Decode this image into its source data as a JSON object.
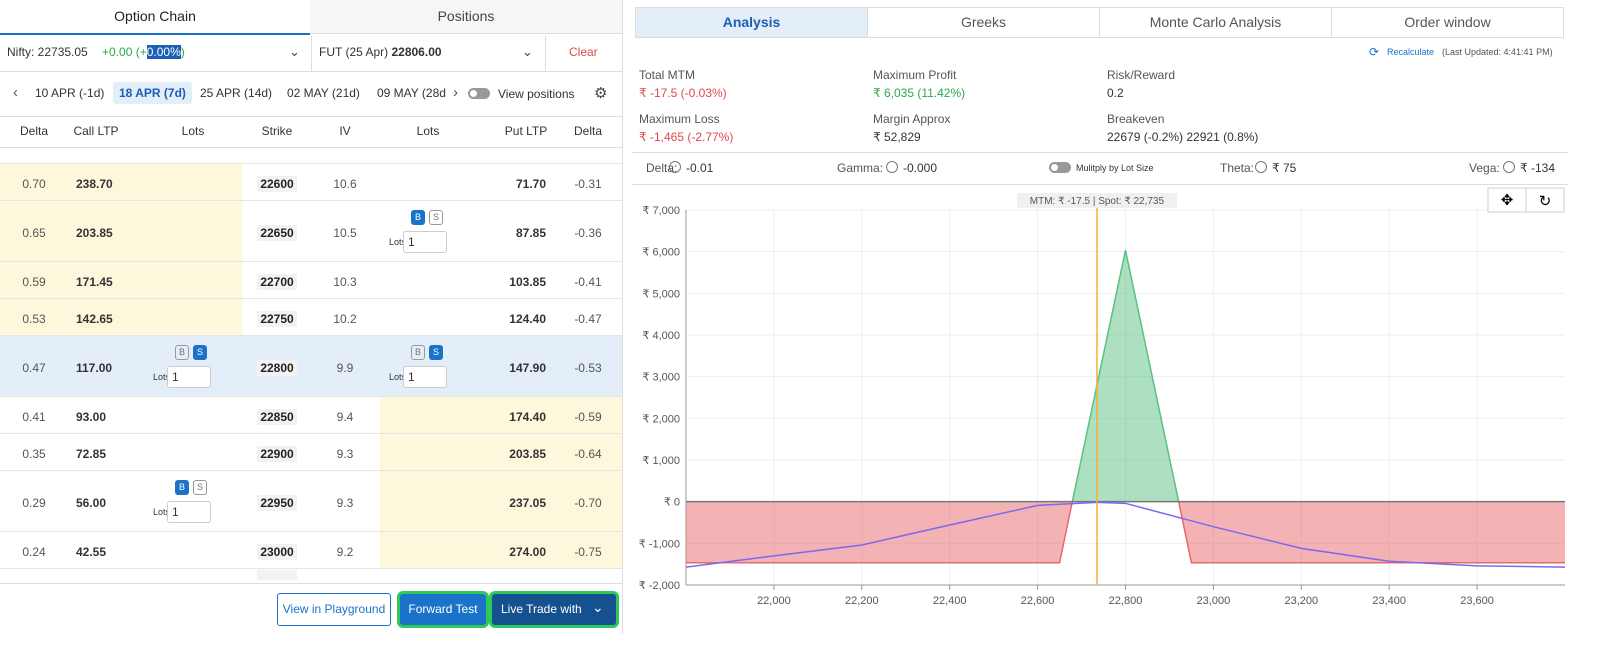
{
  "left": {
    "tabs": [
      "Option Chain",
      "Positions"
    ],
    "active_tab": 0,
    "nifty": "Nifty: 22735.05",
    "nifty_change": "+0.00",
    "change_open": "(+",
    "change_pct": "0.00%",
    "change_close": ")",
    "fut_label": "FUT (25 Apr)",
    "fut_price": "22806.00",
    "clear": "Clear",
    "expiries": [
      "10 APR (-1d)",
      "18 APR (7d)",
      "25 APR (14d)",
      "02 MAY (21d)",
      "09 MAY (28d"
    ],
    "active_expiry": 1,
    "view_positions": "View positions",
    "table": {
      "headers": [
        "Delta",
        "Call LTP",
        "Lots",
        "Strike",
        "IV",
        "Lots",
        "Put LTP",
        "Delta"
      ],
      "rows": [
        {
          "cells": [
            "0.70",
            "238.70",
            "22600",
            "10.6",
            "71.70",
            "-0.31"
          ],
          "call_itm": true,
          "put_itm": false,
          "highlight": false,
          "call_order": null,
          "put_order": null
        },
        {
          "cells": [
            "0.65",
            "203.85",
            "22650",
            "10.5",
            "87.85",
            "-0.36"
          ],
          "call_itm": true,
          "put_itm": false,
          "highlight": false,
          "call_order": null,
          "put_order": {
            "buy": "B",
            "sell": "S",
            "lots_label": "Lots",
            "lots": "1",
            "active": "buy"
          }
        },
        {
          "cells": [
            "0.59",
            "171.45",
            "22700",
            "10.3",
            "103.85",
            "-0.41"
          ],
          "call_itm": true,
          "put_itm": false,
          "highlight": false,
          "call_order": null,
          "put_order": null
        },
        {
          "cells": [
            "0.53",
            "142.65",
            "22750",
            "10.2",
            "124.40",
            "-0.47"
          ],
          "call_itm": true,
          "put_itm": false,
          "highlight": false,
          "call_order": null,
          "put_order": null
        },
        {
          "cells": [
            "0.47",
            "117.00",
            "22800",
            "9.9",
            "147.90",
            "-0.53"
          ],
          "call_itm": false,
          "put_itm": false,
          "highlight": true,
          "call_order": {
            "buy": "B",
            "sell": "S",
            "lots_label": "Lots",
            "lots": "1",
            "active": "sell"
          },
          "put_order": {
            "buy": "B",
            "sell": "S",
            "lots_label": "Lots",
            "lots": "1",
            "active": "sell"
          }
        },
        {
          "cells": [
            "0.41",
            "93.00",
            "22850",
            "9.4",
            "174.40",
            "-0.59"
          ],
          "call_itm": false,
          "put_itm": true,
          "highlight": false,
          "call_order": null,
          "put_order": null
        },
        {
          "cells": [
            "0.35",
            "72.85",
            "22900",
            "9.3",
            "203.85",
            "-0.64"
          ],
          "call_itm": false,
          "put_itm": true,
          "highlight": false,
          "call_order": null,
          "put_order": null
        },
        {
          "cells": [
            "0.29",
            "56.00",
            "22950",
            "9.3",
            "237.05",
            "-0.70"
          ],
          "call_itm": false,
          "put_itm": true,
          "highlight": false,
          "call_order": {
            "buy": "B",
            "sell": "S",
            "lots_label": "Lots",
            "lots": "1",
            "active": "buy"
          },
          "put_order": null
        },
        {
          "cells": [
            "0.24",
            "42.55",
            "23000",
            "9.2",
            "274.00",
            "-0.75"
          ],
          "call_itm": false,
          "put_itm": true,
          "highlight": false,
          "call_order": null,
          "put_order": null
        }
      ]
    },
    "buttons": [
      "View in Playground",
      "Forward Test",
      "Live Trade with"
    ]
  },
  "right": {
    "tabs": [
      "Analysis",
      "Greeks",
      "Monte Carlo Analysis",
      "Order window"
    ],
    "active_tab": 0,
    "recalculate": "Recalculate",
    "last_updated": "(Last Updated: 4:41:41 PM)",
    "stats": [
      {
        "label": "Total MTM",
        "value": "₹ -17.5 (-0.03%)",
        "color": "#e0474c"
      },
      {
        "label": "Maximum Profit",
        "value": "₹ 6,035 (11.42%)",
        "color": "#2aa84a"
      },
      {
        "label": "Risk/Reward",
        "value": "0.2",
        "color": "#333"
      },
      {
        "label": "Maximum Loss",
        "value": "₹ -1,465 (-2.77%)",
        "color": "#e0474c"
      },
      {
        "label": "Margin Approx",
        "value": "₹ 52,829",
        "color": "#333"
      },
      {
        "label": "Breakeven",
        "value": "22679 (-0.2%)  22921 (0.8%)",
        "color": "#333"
      }
    ],
    "greeks": [
      {
        "label": "Delta:",
        "value": "-0.01"
      },
      {
        "label": "Gamma:",
        "value": "-0.000"
      },
      {
        "label": "Theta:",
        "value": "₹ 75"
      },
      {
        "label": "Vega:",
        "value": "₹ -134"
      }
    ],
    "lot_toggle": "Mulitply by Lot Size"
  },
  "chart_data": {
    "type": "payoff",
    "annotation": "MTM: ₹ -17.5  |  Spot: ₹ 22,735",
    "spot": 22735,
    "spot_color": "#f5b041",
    "xlim": [
      21800,
      23800
    ],
    "xticks": [
      {
        "value": 22000,
        "label": "22,000"
      },
      {
        "value": 22200,
        "label": "22,200"
      },
      {
        "value": 22400,
        "label": "22,400"
      },
      {
        "value": 22600,
        "label": "22,600"
      },
      {
        "value": 22800,
        "label": "22,800"
      },
      {
        "value": 23000,
        "label": "23,000"
      },
      {
        "value": 23200,
        "label": "23,200"
      },
      {
        "value": 23400,
        "label": "23,400"
      },
      {
        "value": 23600,
        "label": "23,600"
      }
    ],
    "ylim": [
      -2000,
      7000
    ],
    "yticks": [
      {
        "value": -2000,
        "label": "₹ -2,000"
      },
      {
        "value": -1000,
        "label": "₹ -1,000"
      },
      {
        "value": 0,
        "label": "₹ 0"
      },
      {
        "value": 1000,
        "label": "₹ 1,000"
      },
      {
        "value": 2000,
        "label": "₹ 2,000"
      },
      {
        "value": 3000,
        "label": "₹ 3,000"
      },
      {
        "value": 4000,
        "label": "₹ 4,000"
      },
      {
        "value": 5000,
        "label": "₹ 5,000"
      },
      {
        "value": 6000,
        "label": "₹ 6,000"
      },
      {
        "value": 7000,
        "label": "₹ 7,000"
      }
    ],
    "grid": true,
    "payoff": {
      "x": [
        21800,
        22650,
        22679,
        22800,
        22921,
        22950,
        23800
      ],
      "values": [
        -1465,
        -1465,
        0,
        6035,
        0,
        -1465,
        -1465
      ],
      "positive_color": "#5cc083",
      "negative_color": "#e8686b"
    },
    "t0_curve": {
      "x": [
        21800,
        22000,
        22200,
        22400,
        22600,
        22735,
        22800,
        23000,
        23200,
        23400,
        23600,
        23800
      ],
      "values": [
        -1570,
        -1300,
        -1040,
        -560,
        -90,
        -17.5,
        -40,
        -600,
        -1120,
        -1430,
        -1540,
        -1570
      ],
      "color": "#7b68ee"
    }
  }
}
